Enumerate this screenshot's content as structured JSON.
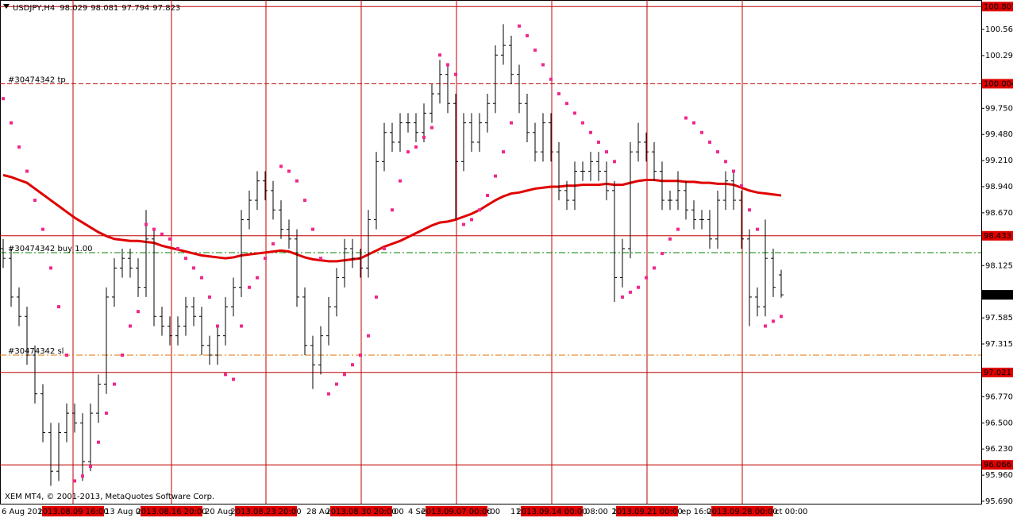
{
  "chart_data": {
    "type": "ohlc",
    "symbol": "USDJPY,H4",
    "ylim": [
      95.665,
      100.869
    ],
    "yticks": [
      100.565,
      100.295,
      {
        "value": 99.75,
        "label": "99.750"
      },
      {
        "value": 99.48,
        "label": "99.480"
      },
      {
        "value": 99.21,
        "label": "99.210"
      },
      {
        "value": 98.94,
        "label": "98.940"
      },
      {
        "value": 98.67,
        "label": "98.670"
      },
      98.125,
      97.585,
      97.315,
      {
        "value": 96.77,
        "label": "96.770"
      },
      {
        "value": 96.5,
        "label": "96.500"
      },
      {
        "value": 96.23,
        "label": "96.230"
      },
      {
        "value": 95.96,
        "label": "95.960"
      },
      {
        "value": 95.69,
        "label": "95.690"
      }
    ],
    "price_lines": [
      100.801,
      100.004,
      98.433,
      97.021,
      96.066
    ],
    "orders": [
      {
        "value": 100.004,
        "label": "#30474342 tp",
        "color": "#c00000",
        "dash": "6 3"
      },
      {
        "value": 98.259,
        "label": "#30474342 buy 1.00",
        "color": "#008000",
        "dash": "8 3 2 3"
      },
      {
        "value": 97.2,
        "label": "#30474342 sl",
        "color": "#e07000",
        "dash": "8 3 2 3"
      }
    ],
    "separators": [
      "2013.08.09 16:00",
      "2013.08.16 20:00",
      "2013.08.23 20:00",
      "2013.08.30 20:00",
      "2013.09.07 00:00",
      "2013.09.14 00:00",
      "2013.09.21 00:00",
      "2013.09.28 00:00"
    ],
    "time_labels": [
      "6 Aug 2013",
      "13 Aug 08",
      "20 Aug 1",
      "28 Aug",
      "00",
      "4 Se",
      ":00",
      "11",
      "08:00",
      "1",
      "ep 16:00",
      "ct 00:00"
    ],
    "copyright": "XEM MT4, © 2001-2013, MetaQuotes Software Corp.",
    "bar_color": "#000000",
    "ma_color": "#e00000",
    "sar_color": "#f0288c",
    "open": [
      98.3,
      98.2,
      97.8,
      97.6,
      97.2,
      96.8,
      96.4,
      96.0,
      96.4,
      96.6,
      96.5,
      96.1,
      96.6,
      96.9,
      97.8,
      98.1,
      98.2,
      98.1,
      97.9,
      98.4,
      97.6,
      97.5,
      97.4,
      97.5,
      97.7,
      97.6,
      97.3,
      97.2,
      97.4,
      97.7,
      97.9,
      98.6,
      98.8,
      99.0,
      98.9,
      98.7,
      98.5,
      98.4,
      97.8,
      97.3,
      97.1,
      97.4,
      97.7,
      98.0,
      98.3,
      98.2,
      98.1,
      98.6,
      99.2,
      99.5,
      99.4,
      99.6,
      99.6,
      99.5,
      99.7,
      99.9,
      100.1,
      99.8,
      99.2,
      99.6,
      99.4,
      99.6,
      99.8,
      100.3,
      100.4,
      100.1,
      99.8,
      99.5,
      99.3,
      99.6,
      99.3,
      98.9,
      98.8,
      99.1,
      99.1,
      99.2,
      99.1,
      98.9,
      98.0,
      98.3,
      99.3,
      99.4,
      99.3,
      99.1,
      98.8,
      98.8,
      98.9,
      98.7,
      98.6,
      98.6,
      98.4,
      98.8,
      99.0,
      98.8,
      98.4,
      97.8,
      97.7,
      98.2,
      98.029
    ],
    "high": [
      98.4,
      98.3,
      97.9,
      97.7,
      97.3,
      96.9,
      96.5,
      96.5,
      96.7,
      96.7,
      96.6,
      96.7,
      97.0,
      97.9,
      98.2,
      98.3,
      98.3,
      98.2,
      98.7,
      98.5,
      97.7,
      97.6,
      97.6,
      97.8,
      97.8,
      97.7,
      97.4,
      97.5,
      97.8,
      98.0,
      98.7,
      98.9,
      99.1,
      99.1,
      99.0,
      98.8,
      98.6,
      98.5,
      97.9,
      97.4,
      97.5,
      97.8,
      98.1,
      98.4,
      98.4,
      98.3,
      98.7,
      99.3,
      99.6,
      99.6,
      99.7,
      99.7,
      99.7,
      99.8,
      100.0,
      100.25,
      100.2,
      99.9,
      99.7,
      99.7,
      99.7,
      99.9,
      100.4,
      100.62,
      100.5,
      100.2,
      99.9,
      99.6,
      99.7,
      99.7,
      99.4,
      99.0,
      99.2,
      99.2,
      99.3,
      99.3,
      99.2,
      99.0,
      98.4,
      99.4,
      99.6,
      99.5,
      99.4,
      99.2,
      98.9,
      99.1,
      99.0,
      98.8,
      98.7,
      98.7,
      98.9,
      99.1,
      99.1,
      98.9,
      98.5,
      97.9,
      98.6,
      98.3,
      98.081
    ],
    "low": [
      98.1,
      97.7,
      97.5,
      97.1,
      96.7,
      96.3,
      95.85,
      95.9,
      96.3,
      96.4,
      95.9,
      96.0,
      96.5,
      96.8,
      97.7,
      98.0,
      98.0,
      97.8,
      97.8,
      97.5,
      97.4,
      97.3,
      97.3,
      97.4,
      97.5,
      97.2,
      97.1,
      97.1,
      97.3,
      97.6,
      97.8,
      98.5,
      98.7,
      98.8,
      98.6,
      98.4,
      98.3,
      97.7,
      97.2,
      96.85,
      97.0,
      97.3,
      97.6,
      97.9,
      98.1,
      98.0,
      98.0,
      98.5,
      99.1,
      99.3,
      99.3,
      99.5,
      99.4,
      99.4,
      99.6,
      99.8,
      99.7,
      98.6,
      99.1,
      99.3,
      99.3,
      99.5,
      99.7,
      100.2,
      100.0,
      99.7,
      99.4,
      99.2,
      99.2,
      99.2,
      98.8,
      98.7,
      98.7,
      99.0,
      99.0,
      99.0,
      98.8,
      97.75,
      97.9,
      98.2,
      99.2,
      99.2,
      99.0,
      98.7,
      98.7,
      98.7,
      98.6,
      98.5,
      98.5,
      98.3,
      98.3,
      98.7,
      98.7,
      98.3,
      97.5,
      97.6,
      97.6,
      97.8,
      97.794
    ],
    "close": [
      98.2,
      97.8,
      97.6,
      97.2,
      96.8,
      96.4,
      96.0,
      96.4,
      96.6,
      96.5,
      96.1,
      96.6,
      96.9,
      97.8,
      98.1,
      98.2,
      98.1,
      97.9,
      98.4,
      97.6,
      97.5,
      97.4,
      97.5,
      97.7,
      97.6,
      97.3,
      97.2,
      97.4,
      97.7,
      97.9,
      98.6,
      98.8,
      99.0,
      98.9,
      98.7,
      98.5,
      98.4,
      97.8,
      97.3,
      97.1,
      97.4,
      97.7,
      98.0,
      98.3,
      98.2,
      98.1,
      98.6,
      99.2,
      99.5,
      99.4,
      99.6,
      99.6,
      99.5,
      99.7,
      99.9,
      100.1,
      99.8,
      99.2,
      99.6,
      99.4,
      99.6,
      99.8,
      100.3,
      100.4,
      100.1,
      99.8,
      99.5,
      99.3,
      99.6,
      99.3,
      98.9,
      98.8,
      99.1,
      99.1,
      99.2,
      99.1,
      98.9,
      98.0,
      98.3,
      99.3,
      99.4,
      99.3,
      99.1,
      98.8,
      98.8,
      98.9,
      98.7,
      98.6,
      98.6,
      98.4,
      98.8,
      99.0,
      98.8,
      98.4,
      97.8,
      97.7,
      98.2,
      97.9,
      97.823
    ],
    "ma": [
      99.06,
      99.04,
      99.01,
      98.98,
      98.92,
      98.86,
      98.8,
      98.74,
      98.68,
      98.62,
      98.57,
      98.52,
      98.47,
      98.43,
      98.4,
      98.39,
      98.38,
      98.38,
      98.37,
      98.36,
      98.33,
      98.31,
      98.29,
      98.27,
      98.25,
      98.23,
      98.22,
      98.21,
      98.2,
      98.21,
      98.23,
      98.24,
      98.25,
      98.26,
      98.27,
      98.28,
      98.27,
      98.24,
      98.21,
      98.19,
      98.18,
      98.17,
      98.17,
      98.18,
      98.19,
      98.2,
      98.24,
      98.28,
      98.32,
      98.35,
      98.38,
      98.42,
      98.46,
      98.5,
      98.54,
      98.57,
      98.58,
      98.6,
      98.63,
      98.66,
      98.7,
      98.75,
      98.8,
      98.84,
      98.87,
      98.88,
      98.9,
      98.92,
      98.93,
      98.94,
      98.94,
      98.95,
      98.95,
      98.96,
      98.96,
      98.96,
      98.97,
      98.96,
      98.96,
      98.98,
      99.0,
      99.01,
      99.01,
      99.0,
      99.0,
      99.0,
      98.99,
      98.99,
      98.98,
      98.98,
      98.97,
      98.97,
      98.96,
      98.93,
      98.9,
      98.88,
      98.87,
      98.86,
      98.85
    ],
    "sar": [
      99.85,
      99.6,
      99.35,
      99.1,
      98.8,
      98.5,
      98.1,
      97.7,
      97.2,
      95.9,
      95.95,
      96.05,
      96.3,
      96.6,
      96.9,
      97.2,
      97.5,
      97.65,
      98.55,
      98.5,
      98.45,
      98.4,
      98.3,
      98.2,
      98.1,
      98.0,
      97.8,
      97.5,
      97.0,
      96.95,
      97.5,
      97.9,
      98.0,
      98.2,
      98.35,
      99.15,
      99.1,
      99.0,
      98.8,
      98.5,
      98.2,
      96.8,
      96.9,
      97.0,
      97.1,
      97.2,
      97.4,
      97.8,
      98.3,
      98.7,
      99.0,
      99.3,
      99.35,
      99.45,
      99.55,
      100.3,
      100.2,
      100.1,
      98.55,
      98.6,
      98.7,
      98.85,
      99.05,
      99.3,
      99.6,
      100.6,
      100.5,
      100.35,
      100.2,
      100.05,
      99.9,
      99.8,
      99.7,
      99.6,
      99.5,
      99.4,
      99.3,
      99.2,
      97.8,
      97.85,
      97.9,
      98.0,
      98.1,
      98.25,
      98.4,
      98.5,
      99.65,
      99.6,
      99.5,
      99.4,
      99.3,
      99.2,
      99.1,
      98.95,
      98.7,
      98.5,
      97.5,
      97.55,
      97.6
    ]
  }
}
